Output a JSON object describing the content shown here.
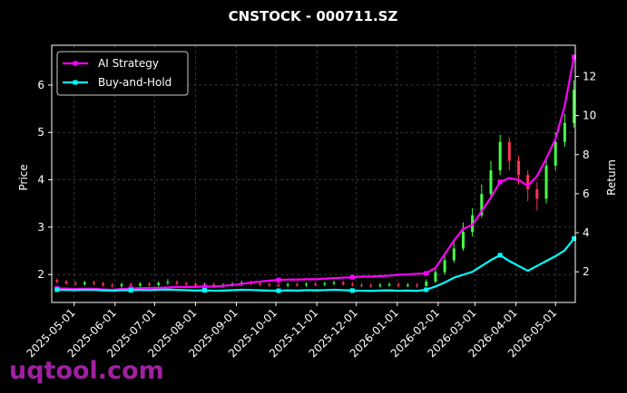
{
  "chart_data": {
    "type": "candlestick",
    "title": "CNSTOCK - 000711.SZ",
    "y_label": "Price",
    "y2_label": "Return",
    "watermark": "uqtool.com",
    "x": [
      "2025-04-18",
      "2025-04-25",
      "2025-05-02",
      "2025-05-09",
      "2025-05-16",
      "2025-05-23",
      "2025-05-30",
      "2025-06-06",
      "2025-06-13",
      "2025-06-20",
      "2025-06-27",
      "2025-07-04",
      "2025-07-11",
      "2025-07-18",
      "2025-07-25",
      "2025-08-01",
      "2025-08-08",
      "2025-08-15",
      "2025-08-22",
      "2025-08-29",
      "2025-09-05",
      "2025-09-12",
      "2025-09-19",
      "2025-09-26",
      "2025-10-03",
      "2025-10-10",
      "2025-10-17",
      "2025-10-24",
      "2025-10-31",
      "2025-11-07",
      "2025-11-14",
      "2025-11-21",
      "2025-11-28",
      "2025-12-05",
      "2025-12-12",
      "2025-12-19",
      "2025-12-26",
      "2026-01-02",
      "2026-01-09",
      "2026-01-16",
      "2026-01-23",
      "2026-01-30",
      "2026-02-06",
      "2026-02-13",
      "2026-02-20",
      "2026-02-27",
      "2026-03-06",
      "2026-03-13",
      "2026-03-20",
      "2026-03-27",
      "2026-04-03",
      "2026-04-10",
      "2026-04-17",
      "2026-04-24",
      "2026-05-01",
      "2026-05-08",
      "2026-05-15"
    ],
    "open": [
      1.88,
      1.85,
      1.82,
      1.8,
      1.83,
      1.81,
      1.78,
      1.76,
      1.79,
      1.77,
      1.8,
      1.78,
      1.82,
      1.84,
      1.81,
      1.8,
      1.77,
      1.79,
      1.76,
      1.78,
      1.8,
      1.83,
      1.81,
      1.79,
      1.78,
      1.77,
      1.79,
      1.78,
      1.8,
      1.79,
      1.81,
      1.83,
      1.8,
      1.78,
      1.77,
      1.76,
      1.78,
      1.79,
      1.77,
      1.78,
      1.76,
      1.85,
      2.05,
      2.3,
      2.55,
      2.9,
      3.25,
      3.7,
      4.2,
      4.8,
      4.4,
      4.1,
      3.8,
      3.6,
      4.3,
      4.8,
      5.2
    ],
    "high": [
      1.92,
      1.89,
      1.86,
      1.87,
      1.87,
      1.85,
      1.82,
      1.83,
      1.83,
      1.84,
      1.84,
      1.86,
      1.9,
      1.88,
      1.85,
      1.84,
      1.83,
      1.83,
      1.82,
      1.84,
      1.87,
      1.87,
      1.85,
      1.83,
      1.82,
      1.83,
      1.83,
      1.84,
      1.84,
      1.85,
      1.87,
      1.87,
      1.84,
      1.82,
      1.81,
      1.82,
      1.83,
      1.83,
      1.82,
      1.82,
      1.9,
      2.12,
      2.4,
      2.7,
      3.1,
      3.4,
      3.9,
      4.4,
      4.95,
      4.9,
      4.5,
      4.2,
      3.95,
      4.45,
      5.0,
      5.4,
      6.1
    ],
    "low": [
      1.81,
      1.78,
      1.76,
      1.76,
      1.77,
      1.74,
      1.72,
      1.72,
      1.73,
      1.73,
      1.74,
      1.74,
      1.78,
      1.77,
      1.76,
      1.73,
      1.73,
      1.72,
      1.72,
      1.74,
      1.76,
      1.77,
      1.75,
      1.74,
      1.73,
      1.73,
      1.74,
      1.74,
      1.75,
      1.75,
      1.77,
      1.76,
      1.74,
      1.73,
      1.72,
      1.72,
      1.74,
      1.73,
      1.73,
      1.72,
      1.74,
      1.82,
      2.0,
      2.25,
      2.5,
      2.8,
      3.2,
      3.6,
      4.1,
      4.2,
      3.9,
      3.55,
      3.35,
      3.5,
      4.2,
      4.7,
      5.1
    ],
    "close": [
      1.85,
      1.82,
      1.8,
      1.83,
      1.81,
      1.78,
      1.76,
      1.79,
      1.77,
      1.8,
      1.78,
      1.82,
      1.84,
      1.81,
      1.8,
      1.77,
      1.79,
      1.76,
      1.78,
      1.8,
      1.83,
      1.81,
      1.79,
      1.78,
      1.77,
      1.79,
      1.78,
      1.8,
      1.79,
      1.81,
      1.83,
      1.8,
      1.78,
      1.77,
      1.76,
      1.78,
      1.79,
      1.77,
      1.78,
      1.76,
      1.85,
      2.05,
      2.3,
      2.55,
      2.9,
      3.25,
      3.7,
      4.2,
      4.8,
      4.4,
      4.1,
      3.8,
      3.6,
      4.3,
      4.8,
      5.2,
      5.9
    ],
    "up_color": "#44ff44",
    "down_color": "#ff3355",
    "series": [
      {
        "name": "AI Strategy",
        "color": "#ff00ff",
        "axis": "y2",
        "values": [
          1.15,
          1.14,
          1.12,
          1.14,
          1.13,
          1.1,
          1.08,
          1.12,
          1.14,
          1.16,
          1.17,
          1.18,
          1.2,
          1.22,
          1.22,
          1.23,
          1.24,
          1.25,
          1.28,
          1.32,
          1.38,
          1.45,
          1.5,
          1.55,
          1.58,
          1.6,
          1.6,
          1.62,
          1.62,
          1.65,
          1.68,
          1.7,
          1.72,
          1.75,
          1.76,
          1.78,
          1.8,
          1.85,
          1.87,
          1.9,
          1.92,
          2.2,
          2.9,
          3.6,
          4.2,
          4.4,
          5.1,
          5.8,
          6.6,
          6.8,
          6.7,
          6.4,
          6.9,
          7.8,
          8.8,
          10.5,
          13.0
        ]
      },
      {
        "name": "Buy-and-Hold",
        "color": "#00ffff",
        "axis": "y2",
        "values": [
          1.08,
          1.07,
          1.06,
          1.08,
          1.07,
          1.05,
          1.03,
          1.06,
          1.05,
          1.07,
          1.06,
          1.08,
          1.09,
          1.07,
          1.06,
          1.04,
          1.05,
          1.03,
          1.04,
          1.06,
          1.08,
          1.07,
          1.05,
          1.04,
          1.03,
          1.05,
          1.04,
          1.06,
          1.05,
          1.06,
          1.08,
          1.06,
          1.04,
          1.03,
          1.02,
          1.04,
          1.05,
          1.03,
          1.04,
          1.02,
          1.08,
          1.25,
          1.45,
          1.7,
          1.85,
          2.0,
          2.3,
          2.6,
          2.85,
          2.55,
          2.3,
          2.05,
          2.3,
          2.55,
          2.8,
          3.1,
          3.7
        ]
      }
    ],
    "xlim": [
      "2025-04-14",
      "2026-05-16"
    ],
    "xticks": [
      "2025-05-01",
      "2025-06-01",
      "2025-07-01",
      "2025-08-01",
      "2025-09-01",
      "2025-10-01",
      "2025-11-01",
      "2025-12-01",
      "2026-01-01",
      "2026-02-01",
      "2026-03-01",
      "2026-04-01",
      "2026-05-01"
    ],
    "ylim": [
      1.41,
      6.84
    ],
    "yticks": [
      2,
      3,
      4,
      5,
      6
    ],
    "y2lim": [
      0.43,
      13.6
    ],
    "y2ticks": [
      2,
      4,
      6,
      8,
      10,
      12
    ],
    "grid": true,
    "legend": "upper left"
  }
}
